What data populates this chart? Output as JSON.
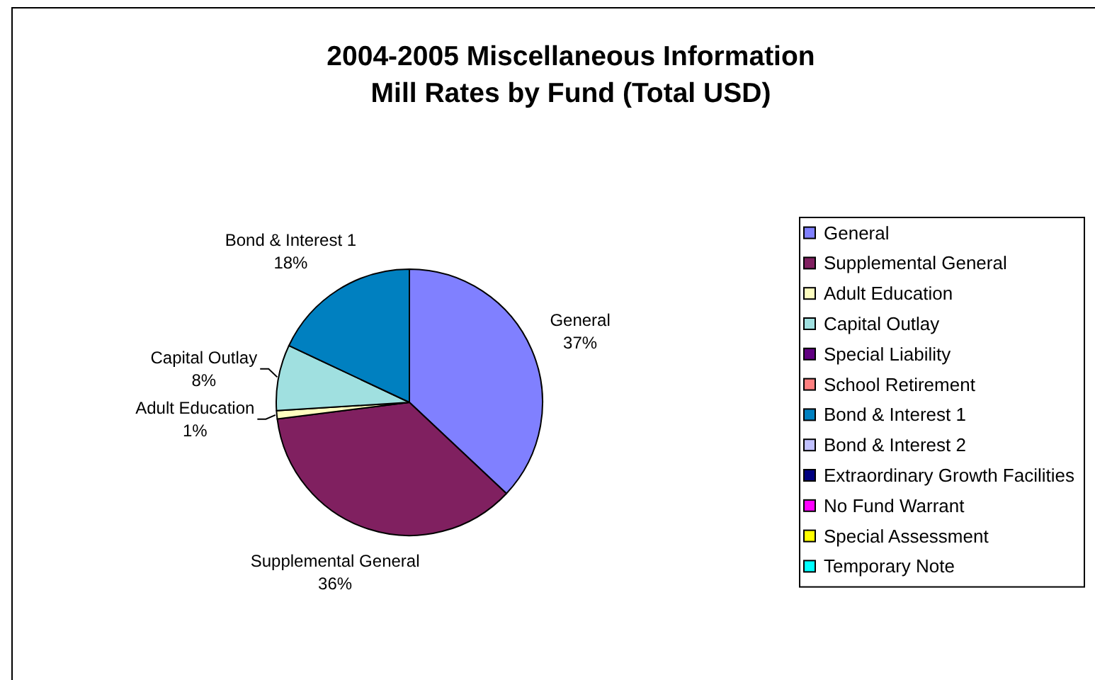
{
  "chart_data": {
    "type": "pie",
    "title": "2004-2005 Miscellaneous Information",
    "subtitle": "Mill Rates by Fund (Total USD)",
    "categories": [
      "General",
      "Supplemental General",
      "Adult Education",
      "Capital Outlay",
      "Special Liability",
      "School Retirement",
      "Bond & Interest 1",
      "Bond & Interest 2",
      "Extraordinary Growth Facilities",
      "No Fund Warrant",
      "Special Assessment",
      "Temporary Note"
    ],
    "values": [
      37,
      36,
      1,
      8,
      0,
      0,
      18,
      0,
      0,
      0,
      0,
      0
    ],
    "colors": [
      "#8080ff",
      "#802060",
      "#ffffc0",
      "#a0e0e0",
      "#600080",
      "#ff8080",
      "#0080c0",
      "#c0c0ff",
      "#000080",
      "#ff00ff",
      "#ffff00",
      "#00ffff"
    ],
    "value_labels": [
      "37%",
      "36%",
      "1%",
      "8%",
      null,
      null,
      "18%",
      null,
      null,
      null,
      null,
      null
    ],
    "legend": "right"
  }
}
